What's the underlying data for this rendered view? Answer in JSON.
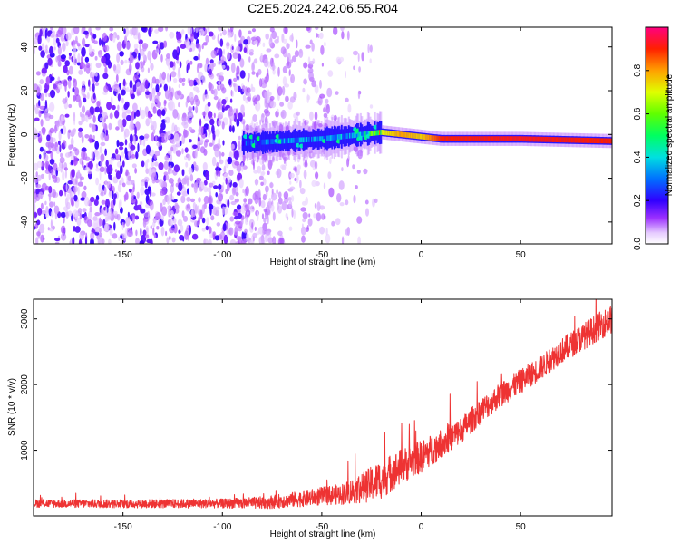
{
  "title": "C2E5.2024.242.06.55.R04",
  "chart_data": [
    {
      "type": "heatmap",
      "xlabel": "Height of straight line (km)",
      "ylabel": "Frequency (Hz)",
      "xlim": [
        -195,
        96
      ],
      "ylim": [
        -50,
        49
      ],
      "xticks": [
        -150,
        -100,
        -50,
        0,
        50
      ],
      "yticks": [
        -40,
        -20,
        0,
        20,
        40
      ],
      "ridge": {
        "x_start": -90,
        "x_end": 96,
        "frequency_hz": [
          [
            -90,
            -4
          ],
          [
            -70,
            -3
          ],
          [
            -50,
            -2
          ],
          [
            -30,
            0
          ],
          [
            -20,
            1
          ],
          [
            -10,
            0
          ],
          [
            0,
            -1
          ],
          [
            10,
            -2
          ],
          [
            50,
            -2
          ],
          [
            96,
            -3
          ]
        ],
        "peak_amplitude": [
          [
            -90,
            0.25
          ],
          [
            -70,
            0.3
          ],
          [
            -50,
            0.3
          ],
          [
            -30,
            0.35
          ],
          [
            -20,
            0.7
          ],
          [
            -10,
            0.8
          ],
          [
            0,
            0.75
          ],
          [
            10,
            0.9
          ],
          [
            50,
            0.92
          ],
          [
            96,
            0.9
          ]
        ]
      },
      "noise_region": {
        "x_range": [
          -195,
          -90
        ],
        "frequency_range": [
          -50,
          49
        ],
        "amplitude": 0.2
      },
      "colorbar": {
        "label": "Normalized spectral amplitude",
        "ticks": [
          "0.0",
          "0.2",
          "0.4",
          "0.6",
          "0.8"
        ],
        "range": [
          0,
          1
        ],
        "colors": [
          "#ffffff",
          "#cc88ff",
          "#7f00ff",
          "#0000ff",
          "#00bfff",
          "#00ff80",
          "#80ff00",
          "#ffff00",
          "#ff8000",
          "#ff0000",
          "#ff0077"
        ]
      }
    },
    {
      "type": "line",
      "xlabel": "Height of straight line (km)",
      "ylabel": "SNR (10 * v/v)",
      "xlim": [
        -195,
        96
      ],
      "ylim": [
        0,
        3300
      ],
      "xticks": [
        -150,
        -100,
        -50,
        0,
        50
      ],
      "yticks": [
        1000,
        2000,
        3000
      ],
      "color": "#ee3333",
      "series": [
        {
          "trend": [
            [
              -195,
              190
            ],
            [
              -150,
              185
            ],
            [
              -100,
              190
            ],
            [
              -80,
              200
            ],
            [
              -60,
              260
            ],
            [
              -50,
              300
            ],
            [
              -40,
              330
            ],
            [
              -30,
              420
            ],
            [
              -20,
              560
            ],
            [
              -10,
              750
            ],
            [
              0,
              900
            ],
            [
              10,
              1100
            ],
            [
              20,
              1300
            ],
            [
              30,
              1600
            ],
            [
              40,
              1850
            ],
            [
              50,
              2050
            ],
            [
              60,
              2250
            ],
            [
              70,
              2500
            ],
            [
              80,
              2700
            ],
            [
              90,
              2900
            ],
            [
              96,
              3000
            ]
          ],
          "spread": [
            [
              -195,
              60
            ],
            [
              -100,
              70
            ],
            [
              -60,
              120
            ],
            [
              -40,
              160
            ],
            [
              -20,
              300
            ],
            [
              0,
              250
            ],
            [
              20,
              200
            ],
            [
              60,
              180
            ],
            [
              96,
              220
            ]
          ]
        }
      ]
    }
  ]
}
